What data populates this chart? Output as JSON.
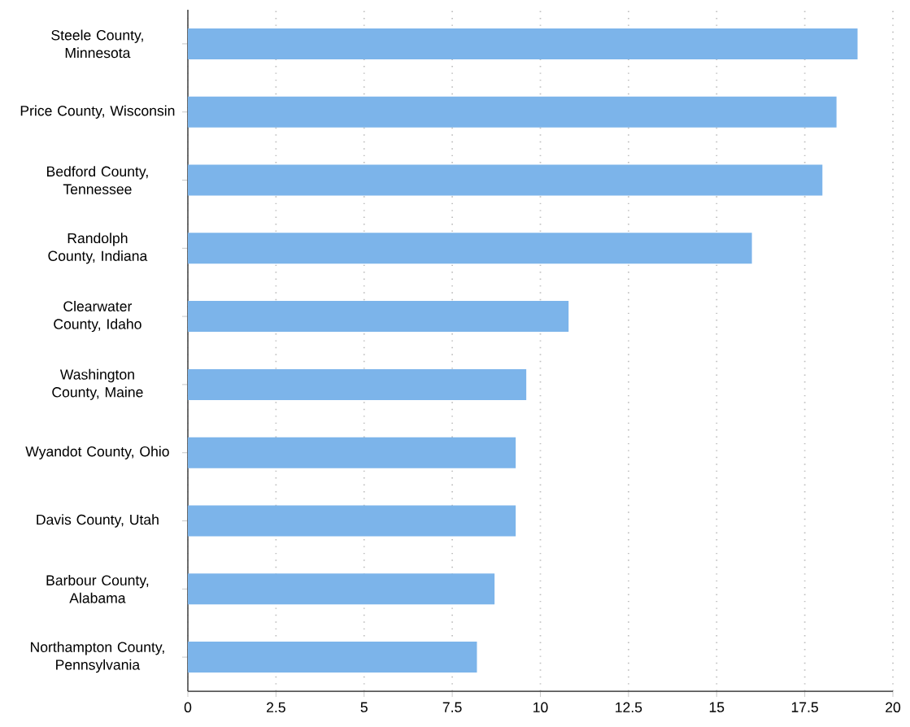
{
  "chart_data": {
    "type": "bar",
    "orientation": "horizontal",
    "categories": [
      "Steele County, Minnesota",
      "Price County, Wisconsin",
      "Bedford County, Tennessee",
      "Randolph County, Indiana",
      "Clearwater County, Idaho",
      "Washington County, Maine",
      "Wyandot County, Ohio",
      "Davis County, Utah",
      "Barbour County, Alabama",
      "Northampton County, Pennsylvania"
    ],
    "values": [
      19.0,
      18.4,
      18.0,
      16.0,
      10.8,
      9.6,
      9.3,
      9.3,
      8.7,
      8.2
    ],
    "color": "#7cb4ea",
    "xlim": [
      0,
      20
    ],
    "xticks": [
      0,
      2.5,
      5,
      7.5,
      10,
      12.5,
      15,
      17.5,
      20
    ],
    "grid": "x"
  }
}
